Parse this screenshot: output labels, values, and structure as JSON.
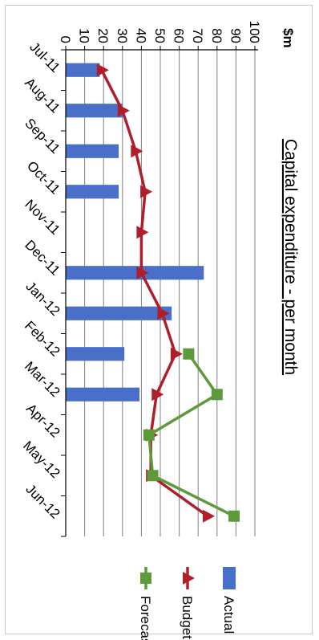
{
  "chart_data": {
    "type": "bar",
    "title": "Capital expenditure - per month",
    "unit_label": "$m",
    "categories": [
      "Jul-11",
      "Aug-11",
      "Sep-11",
      "Oct-11",
      "Nov-11",
      "Dec-11",
      "Jan-12",
      "Feb-12",
      "Mar-12",
      "Apr-12",
      "May-12",
      "Jun-12"
    ],
    "ylim": [
      0,
      100
    ],
    "yticks": [
      "0",
      "10",
      "20",
      "30",
      "40",
      "50",
      "60",
      "70",
      "80",
      "90",
      "100"
    ],
    "grid": true,
    "legend_position": "top-right",
    "orientation": "rotated 90 degrees clockwise",
    "series": [
      {
        "name": "Actual",
        "type": "bar",
        "color": "#4a6fc9",
        "values": [
          18,
          30,
          28,
          28,
          null,
          73,
          56,
          31,
          39,
          null,
          null,
          null
        ]
      },
      {
        "name": "Budget",
        "type": "line",
        "marker": "triangle",
        "color": "#b01e2a",
        "values": [
          19,
          30,
          37,
          42,
          40,
          40,
          51,
          58,
          48,
          45,
          45,
          75
        ]
      },
      {
        "name": "Forecast",
        "type": "line",
        "marker": "square",
        "color": "#5c9a3a",
        "values": [
          null,
          null,
          null,
          null,
          null,
          null,
          null,
          65,
          80,
          44,
          46,
          89
        ]
      }
    ]
  }
}
